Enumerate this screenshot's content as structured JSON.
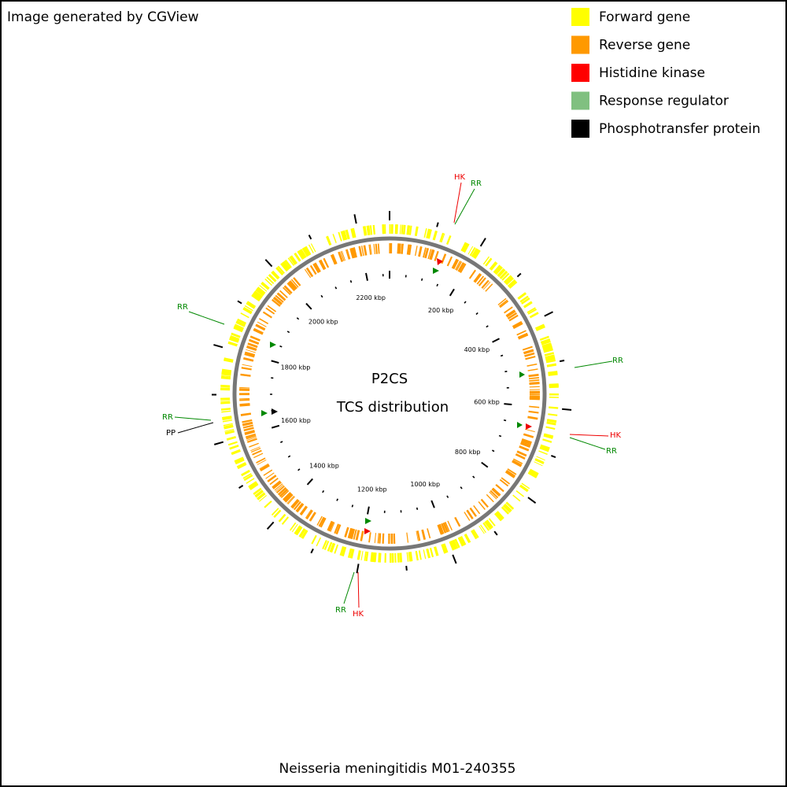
{
  "header": {
    "text": "Image generated by CGView"
  },
  "legend": [
    {
      "label": "Forward gene",
      "color": "#ffff00"
    },
    {
      "label": "Reverse gene",
      "color": "#ff9900"
    },
    {
      "label": "Histidine kinase",
      "color": "#ff0000"
    },
    {
      "label": "Response regulator",
      "color": "#80c080"
    },
    {
      "label": "Phosphotransfer protein",
      "color": "#000000"
    }
  ],
  "center": {
    "title": "P2CS",
    "subtitle": "TCS distribution"
  },
  "ticks": [
    "200 kbp",
    "400 kbp",
    "600 kbp",
    "800 kbp",
    "1000 kbp",
    "1200 kbp",
    "1400 kbp",
    "1600 kbp",
    "1800 kbp",
    "2000 kbp",
    "2200 kbp"
  ],
  "features": [
    "HK",
    "RR",
    "RR",
    "RR",
    "HK",
    "RR",
    "RR",
    "PP",
    "RR",
    "HK"
  ],
  "footer": "Neisseria meningitidis M01-240355"
}
